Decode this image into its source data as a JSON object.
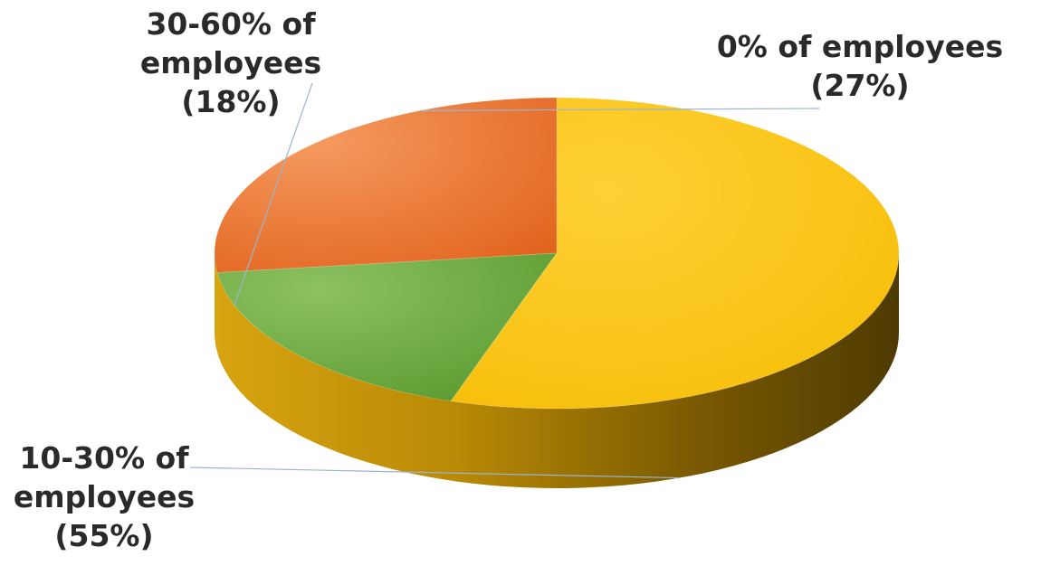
{
  "chart_data": {
    "type": "pie",
    "style": "3d",
    "start_angle_deg": 90,
    "direction": "clockwise",
    "slices": [
      {
        "name": "0% of employees",
        "value": 27,
        "percent_label": "(27%)",
        "label_lines": [
          "0% of employees",
          "(27%)"
        ],
        "color": "#E8722C"
      },
      {
        "name": "30-60% of employees",
        "value": 18,
        "percent_label": "(18%)",
        "label_lines": [
          "30-60% of",
          "employees",
          "(18%)"
        ],
        "color": "#6AAA3C"
      },
      {
        "name": "10-30% of employees",
        "value": 55,
        "percent_label": "(55%)",
        "label_lines": [
          "10-30% of",
          "employees",
          "(55%)"
        ],
        "color": "#FBC40D"
      }
    ],
    "title": "",
    "legend": "none"
  }
}
